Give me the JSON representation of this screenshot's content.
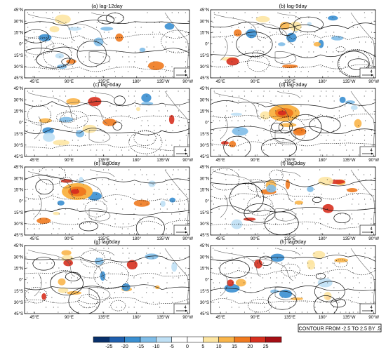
{
  "panels": [
    {
      "title": "(a) lag-12day"
    },
    {
      "title": "(b) lag-9day"
    },
    {
      "title": "(c) lag-6day"
    },
    {
      "title": "(d) lag-3day"
    },
    {
      "title": "(e) lag0day"
    },
    {
      "title": "(f) lag3day"
    },
    {
      "title": "(g) lag6day"
    },
    {
      "title": "(h) lag9day"
    }
  ],
  "axes": {
    "lat_labels": [
      "45°N",
      "30°N",
      "15°N",
      "0°",
      "15°S",
      "30°S",
      "45°S"
    ],
    "lon_labels": [
      "45°E",
      "90°E",
      "135°E",
      "180°",
      "135°W",
      "90°W"
    ]
  },
  "vector_reference": "4",
  "contour_note": "CONTOUR FROM -2.5 TO 2.5 BY .5",
  "colorbar": {
    "labels": [
      "-25",
      "-20",
      "-15",
      "-10",
      "-5",
      "0",
      "5",
      "10",
      "15",
      "20",
      "25"
    ],
    "colors": [
      "#08306b",
      "#1f5fae",
      "#3a8fd1",
      "#7fbde8",
      "#bfe0f5",
      "#ffffff",
      "#ffffff",
      "#fde6a3",
      "#f9b54a",
      "#f07a1f",
      "#d7301f",
      "#a50f15"
    ]
  },
  "chart_data": {
    "type": "heatmap",
    "lat_labels": [
      "45°N",
      "30°N",
      "15°N",
      "0°",
      "15°S",
      "30°S",
      "45°S"
    ],
    "lon_labels": [
      "45°E",
      "90°E",
      "135°E",
      "180°",
      "135°W",
      "90°W"
    ],
    "panels": [
      "(a) lag-12day",
      "(b) lag-9day",
      "(c) lag-6day",
      "(d) lag-3day",
      "(e) lag0day",
      "(f) lag3day",
      "(g) lag6day",
      "(h) lag9day"
    ],
    "colorbar_range": [
      -25,
      25
    ],
    "contour_range": [
      -2.5,
      2.5
    ],
    "contour_interval": 0.5
  }
}
